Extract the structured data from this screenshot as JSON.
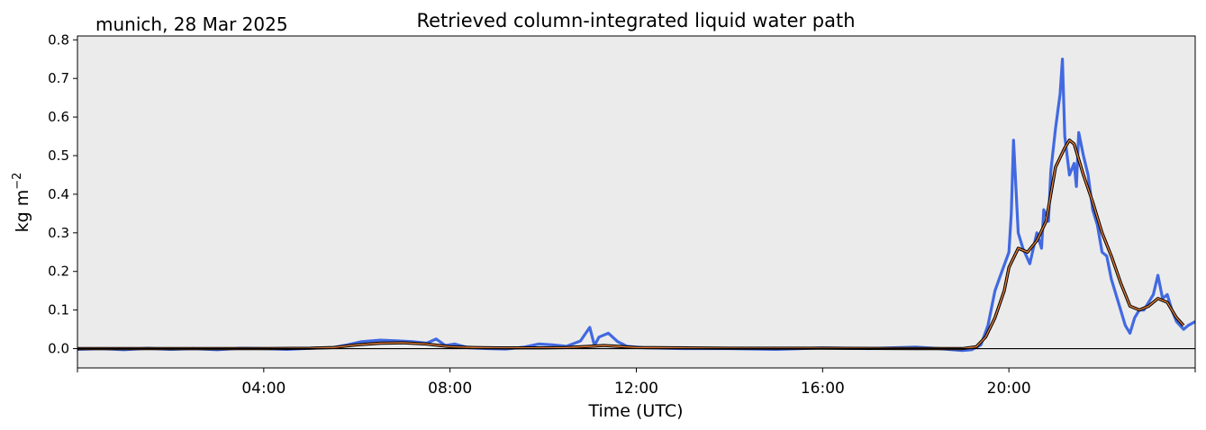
{
  "header": {
    "site_date": "munich, 28 Mar 2025",
    "title": "Retrieved column-integrated liquid water path"
  },
  "chart_data": {
    "type": "line",
    "title": "Retrieved column-integrated liquid water path",
    "xlabel": "Time (UTC)",
    "ylabel_base": "kg m",
    "ylabel_exp": "−2",
    "xlim": [
      0,
      24
    ],
    "ylim": [
      -0.05,
      0.81
    ],
    "x_ticks": [
      4,
      8,
      12,
      16,
      20
    ],
    "x_tick_labels": [
      "04:00",
      "08:00",
      "12:00",
      "16:00",
      "20:00"
    ],
    "y_ticks": [
      0.0,
      0.1,
      0.2,
      0.3,
      0.4,
      0.5,
      0.6,
      0.7,
      0.8
    ],
    "y_tick_labels": [
      "0.0",
      "0.1",
      "0.2",
      "0.3",
      "0.4",
      "0.5",
      "0.6",
      "0.7",
      "0.8"
    ],
    "background_color": "#ebebeb",
    "grid": false,
    "reference_line": {
      "y": 0.0,
      "color": "#000000"
    },
    "series": [
      {
        "color": "#4169e1",
        "style": "raw-scatter",
        "x": [
          0,
          0.5,
          1,
          1.5,
          2,
          2.5,
          3,
          3.5,
          4,
          4.5,
          5,
          5.5,
          5.8,
          6.1,
          6.5,
          6.9,
          7.2,
          7.5,
          7.7,
          7.9,
          8.1,
          8.4,
          8.8,
          9.2,
          9.6,
          9.9,
          10.2,
          10.5,
          10.8,
          11.0,
          11.1,
          11.2,
          11.4,
          11.6,
          11.8,
          12.2,
          13,
          14,
          15,
          16,
          17,
          18,
          18.5,
          19,
          19.2,
          19.4,
          19.55,
          19.7,
          19.85,
          20.0,
          20.05,
          20.1,
          20.2,
          20.3,
          20.45,
          20.6,
          20.7,
          20.75,
          20.85,
          20.9,
          21.0,
          21.1,
          21.15,
          21.2,
          21.3,
          21.4,
          21.45,
          21.5,
          21.6,
          21.7,
          21.8,
          21.9,
          22.0,
          22.1,
          22.2,
          22.35,
          22.5,
          22.6,
          22.7,
          22.8,
          22.9,
          23.0,
          23.1,
          23.2,
          23.3,
          23.4,
          23.5,
          23.6,
          23.75,
          23.85,
          24.0
        ],
        "values": [
          -0.002,
          0.0,
          -0.003,
          0.001,
          -0.002,
          0.0,
          -0.003,
          0.001,
          0.0,
          -0.002,
          0.001,
          0.003,
          0.01,
          0.018,
          0.022,
          0.02,
          0.018,
          0.014,
          0.025,
          0.008,
          0.012,
          0.002,
          0.0,
          -0.001,
          0.004,
          0.012,
          0.01,
          0.006,
          0.02,
          0.055,
          0.008,
          0.03,
          0.04,
          0.018,
          0.006,
          0.002,
          0.0,
          0.0,
          -0.002,
          0.002,
          0.0,
          0.004,
          0.0,
          -0.005,
          -0.003,
          0.01,
          0.06,
          0.15,
          0.2,
          0.25,
          0.35,
          0.54,
          0.3,
          0.26,
          0.22,
          0.3,
          0.26,
          0.36,
          0.33,
          0.46,
          0.57,
          0.66,
          0.75,
          0.55,
          0.45,
          0.48,
          0.42,
          0.56,
          0.5,
          0.45,
          0.36,
          0.32,
          0.25,
          0.24,
          0.18,
          0.12,
          0.06,
          0.04,
          0.08,
          0.1,
          0.1,
          0.12,
          0.14,
          0.19,
          0.13,
          0.14,
          0.1,
          0.07,
          0.05,
          0.06,
          0.07
        ]
      },
      {
        "color": "#000000",
        "style": "smoothed-outline",
        "x": [
          0,
          2,
          4,
          5,
          5.5,
          6,
          6.5,
          7,
          7.5,
          8,
          8.5,
          9,
          10,
          10.5,
          11,
          11.3,
          11.6,
          12,
          14,
          16,
          18,
          19,
          19.3,
          19.5,
          19.7,
          19.9,
          20.0,
          20.2,
          20.4,
          20.6,
          20.8,
          21.0,
          21.2,
          21.3,
          21.4,
          21.6,
          21.8,
          22.0,
          22.2,
          22.4,
          22.6,
          22.8,
          23.0,
          23.2,
          23.4,
          23.6,
          23.75
        ],
        "values": [
          0.0,
          0.0,
          0.0,
          0.001,
          0.003,
          0.01,
          0.014,
          0.015,
          0.012,
          0.005,
          0.003,
          0.002,
          0.002,
          0.003,
          0.006,
          0.008,
          0.006,
          0.003,
          0.001,
          0.001,
          0.0,
          0.0,
          0.005,
          0.03,
          0.08,
          0.15,
          0.21,
          0.26,
          0.25,
          0.28,
          0.33,
          0.47,
          0.52,
          0.54,
          0.53,
          0.45,
          0.38,
          0.3,
          0.24,
          0.17,
          0.11,
          0.1,
          0.11,
          0.13,
          0.12,
          0.08,
          0.06
        ]
      }
    ]
  }
}
